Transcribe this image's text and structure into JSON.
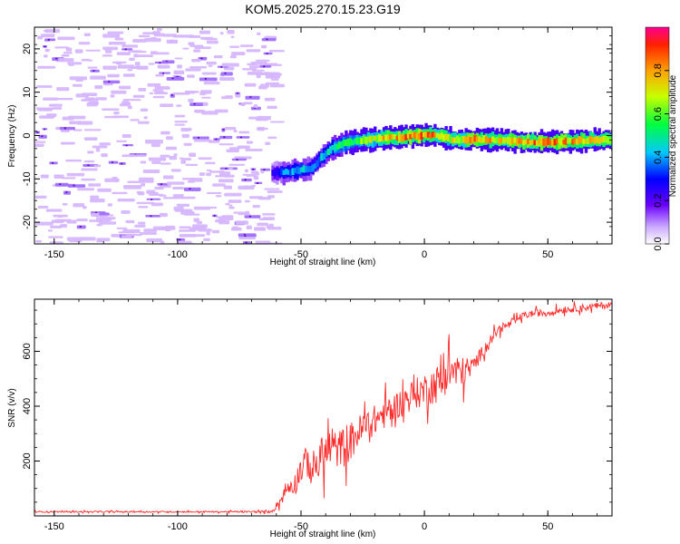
{
  "title": "KOM5.2025.270.15.23.G19",
  "chart_data": [
    {
      "type": "heatmap",
      "xlabel": "Height of straight line (km)",
      "ylabel": "Frequency (Hz)",
      "xlim": [
        -158,
        76
      ],
      "ylim": [
        -25,
        25
      ],
      "xticks": [
        -150,
        -100,
        -50,
        0,
        50
      ],
      "yticks": [
        -20,
        -10,
        0,
        10,
        20
      ],
      "colorbar": {
        "label": "Normalized spectral amplitude",
        "range": [
          0,
          1
        ],
        "ticks": [
          "0.0",
          "0.2",
          "0.4",
          "0.6",
          "0.8"
        ]
      },
      "signal_track": {
        "x": [
          -62,
          -57,
          -50,
          -46,
          -42,
          -38,
          -34,
          -30,
          -25,
          -20,
          -15,
          -10,
          -5,
          0,
          5,
          10,
          15,
          20,
          25,
          30,
          35,
          40,
          50,
          60,
          70,
          76
        ],
        "y": [
          -8.5,
          -8.5,
          -8,
          -7.5,
          -5,
          -3,
          -2,
          -1.5,
          -1,
          -0.8,
          -0.5,
          -0.5,
          0,
          0,
          0,
          -0.8,
          -1,
          -0.8,
          -1,
          -1,
          -1.2,
          -1.5,
          -1.5,
          -1.3,
          -1,
          -1
        ],
        "amplitude": [
          0.25,
          0.4,
          0.45,
          0.35,
          0.45,
          0.5,
          0.55,
          0.6,
          0.65,
          0.7,
          0.8,
          0.85,
          0.85,
          0.9,
          0.8,
          0.7,
          0.75,
          0.85,
          0.8,
          0.75,
          0.8,
          0.85,
          0.85,
          0.8,
          0.75,
          0.7
        ]
      },
      "noise_region_x": [
        -158,
        -62
      ],
      "noise_amplitude": 0.05
    },
    {
      "type": "line",
      "xlabel": "Height of straight line (km)",
      "ylabel": "SNR (v/v)",
      "xlim": [
        -158,
        76
      ],
      "ylim": [
        0,
        790
      ],
      "xticks": [
        -150,
        -100,
        -50,
        0,
        50
      ],
      "yticks": [
        200,
        400,
        600
      ],
      "series": [
        {
          "color": "#ff2a2a",
          "x": [
            -158,
            -140,
            -120,
            -100,
            -80,
            -62,
            -58,
            -55,
            -52,
            -50,
            -48,
            -45,
            -42,
            -40,
            -38,
            -35,
            -32,
            -30,
            -25,
            -20,
            -15,
            -10,
            -5,
            0,
            5,
            10,
            15,
            20,
            25,
            30,
            35,
            40,
            45,
            50,
            55,
            60,
            65,
            70,
            76
          ],
          "y": [
            15,
            15,
            15,
            15,
            15,
            15,
            60,
            110,
            120,
            180,
            200,
            170,
            210,
            230,
            250,
            240,
            260,
            270,
            320,
            350,
            380,
            410,
            440,
            460,
            480,
            530,
            520,
            550,
            620,
            680,
            700,
            730,
            740,
            740,
            750,
            755,
            760,
            765,
            770
          ],
          "noise_amplitude": [
            5,
            5,
            5,
            5,
            5,
            8,
            40,
            60,
            80,
            120,
            100,
            140,
            130,
            160,
            150,
            130,
            160,
            140,
            120,
            110,
            110,
            100,
            110,
            120,
            140,
            150,
            120,
            60,
            40,
            35,
            30,
            25,
            25,
            25,
            25,
            25,
            25,
            25,
            25
          ]
        }
      ]
    }
  ]
}
